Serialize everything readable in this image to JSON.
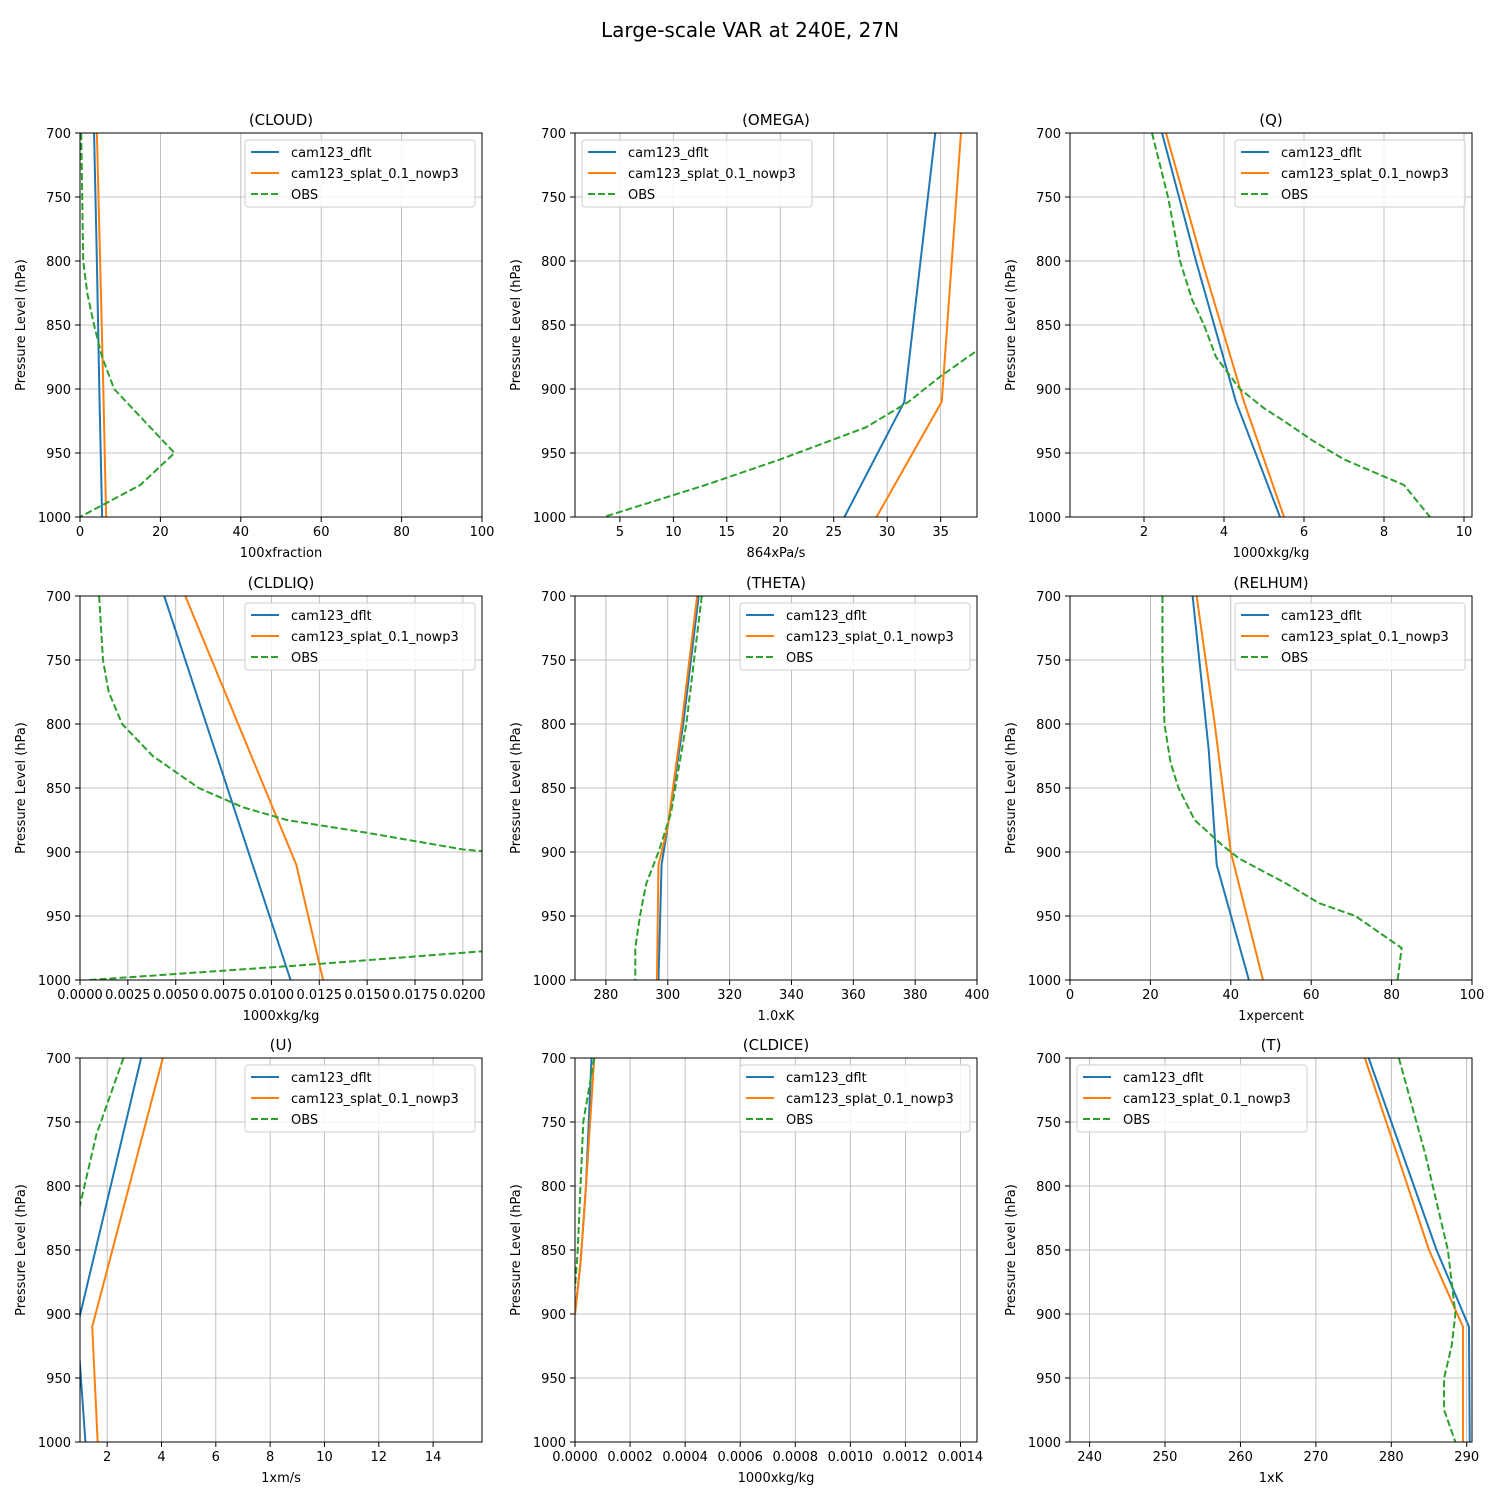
{
  "figure": {
    "title": "Large-scale VAR at 240E, 27N",
    "ylabel": "Pressure Level (hPa)",
    "ylim": [
      1000,
      700
    ],
    "yticks": [
      700,
      750,
      800,
      850,
      900,
      950,
      1000
    ],
    "legend_labels": [
      "cam123_dflt",
      "cam123_splat_0.1_nowp3",
      "OBS"
    ],
    "series_colors": {
      "cam123_dflt": "#1f77b4",
      "cam123_splat_0.1_nowp3": "#ff7f0e",
      "OBS": "#2ca02c"
    }
  },
  "chart_data": [
    {
      "type": "line",
      "title": "(CLOUD)",
      "xlabel": "100xfraction",
      "ylabel": "Pressure Level (hPa)",
      "xlim": [
        0,
        100
      ],
      "ylim": [
        1000,
        700
      ],
      "xticks": [
        0,
        20,
        40,
        60,
        80,
        100
      ],
      "xtick_labels": [
        "0",
        "20",
        "40",
        "60",
        "80",
        "100"
      ],
      "grid": true,
      "legend": "top-right",
      "series": [
        {
          "name": "cam123_dflt",
          "style": "solid",
          "points": [
            [
              3.5,
              700
            ],
            [
              4.2,
              800
            ],
            [
              4.8,
              900
            ],
            [
              5.5,
              1000
            ]
          ]
        },
        {
          "name": "cam123_splat_0.1_nowp3",
          "style": "solid",
          "points": [
            [
              4.2,
              700
            ],
            [
              5.0,
              800
            ],
            [
              5.8,
              900
            ],
            [
              6.5,
              1000
            ]
          ]
        },
        {
          "name": "OBS",
          "style": "dashed",
          "points": [
            [
              0.3,
              700
            ],
            [
              0.8,
              800
            ],
            [
              1.8,
              825
            ],
            [
              3.5,
              850
            ],
            [
              5.5,
              875
            ],
            [
              8.5,
              900
            ],
            [
              16,
              925
            ],
            [
              23.5,
              950
            ],
            [
              15,
              975
            ],
            [
              0,
              1000
            ]
          ]
        }
      ]
    },
    {
      "type": "line",
      "title": "(OMEGA)",
      "xlabel": "864xPa/s",
      "ylabel": "Pressure Level (hPa)",
      "xlim": [
        0.8,
        38.4
      ],
      "ylim": [
        1000,
        700
      ],
      "xticks": [
        5,
        10,
        15,
        20,
        25,
        30,
        35
      ],
      "xtick_labels": [
        "5",
        "10",
        "15",
        "20",
        "25",
        "30",
        "35"
      ],
      "grid": true,
      "legend": "top-left",
      "series": [
        {
          "name": "cam123_dflt",
          "style": "solid",
          "points": [
            [
              34.5,
              700
            ],
            [
              31.6,
              910
            ],
            [
              26.0,
              1000
            ]
          ]
        },
        {
          "name": "cam123_splat_0.1_nowp3",
          "style": "solid",
          "points": [
            [
              36.9,
              700
            ],
            [
              35.1,
              910
            ],
            [
              29.0,
              1000
            ]
          ]
        },
        {
          "name": "OBS",
          "style": "dashed",
          "points": [
            [
              39.5,
              860
            ],
            [
              38.4,
              870
            ],
            [
              35,
              890
            ],
            [
              32,
              910
            ],
            [
              28,
              930
            ],
            [
              20,
              955
            ],
            [
              13,
              975
            ],
            [
              3.5,
              1000
            ]
          ]
        }
      ]
    },
    {
      "type": "line",
      "title": "(Q)",
      "xlabel": "1000xkg/kg",
      "ylabel": "Pressure Level (hPa)",
      "xlim": [
        0.15,
        10.2
      ],
      "ylim": [
        1000,
        700
      ],
      "xticks": [
        2,
        4,
        6,
        8,
        10
      ],
      "xtick_labels": [
        "2",
        "4",
        "6",
        "8",
        "10"
      ],
      "grid": true,
      "legend": "top-right",
      "series": [
        {
          "name": "cam123_dflt",
          "style": "solid",
          "points": [
            [
              2.45,
              700
            ],
            [
              3.3,
              800
            ],
            [
              4.3,
              910
            ],
            [
              5.4,
              1000
            ]
          ]
        },
        {
          "name": "cam123_splat_0.1_nowp3",
          "style": "solid",
          "points": [
            [
              2.55,
              700
            ],
            [
              3.45,
              800
            ],
            [
              4.5,
              910
            ],
            [
              5.5,
              1000
            ]
          ]
        },
        {
          "name": "OBS",
          "style": "dashed",
          "points": [
            [
              2.2,
              700
            ],
            [
              2.6,
              750
            ],
            [
              2.9,
              800
            ],
            [
              3.2,
              830
            ],
            [
              3.5,
              850
            ],
            [
              3.8,
              875
            ],
            [
              4.4,
              900
            ],
            [
              5.0,
              915
            ],
            [
              5.5,
              925
            ],
            [
              6.2,
              940
            ],
            [
              7.0,
              955
            ],
            [
              8.5,
              975
            ],
            [
              9.15,
              1000
            ]
          ]
        }
      ]
    },
    {
      "type": "line",
      "title": "(CLDLIQ)",
      "xlabel": "1000xkg/kg",
      "ylabel": "Pressure Level (hPa)",
      "xlim": [
        0,
        0.021
      ],
      "ylim": [
        1000,
        700
      ],
      "xticks": [
        0,
        0.0025,
        0.005,
        0.0075,
        0.01,
        0.0125,
        0.015,
        0.0175,
        0.02
      ],
      "xtick_labels": [
        "0.0000",
        "0.0025",
        "0.0050",
        "0.0075",
        "0.0100",
        "0.0125",
        "0.0150",
        "0.0175",
        "0.0200"
      ],
      "grid": true,
      "legend": "top-right",
      "series": [
        {
          "name": "cam123_dflt",
          "style": "solid",
          "points": [
            [
              0.0044,
              700
            ],
            [
              0.011,
              1000
            ]
          ]
        },
        {
          "name": "cam123_splat_0.1_nowp3",
          "style": "solid",
          "points": [
            [
              0.0055,
              700
            ],
            [
              0.0113,
              910
            ],
            [
              0.0127,
              1000
            ]
          ]
        },
        {
          "name": "OBS",
          "style": "dashed",
          "points": [
            [
              0.001,
              700
            ],
            [
              0.0012,
              750
            ],
            [
              0.0015,
              775
            ],
            [
              0.0022,
              800
            ],
            [
              0.0038,
              825
            ],
            [
              0.0062,
              850
            ],
            [
              0.0085,
              865
            ],
            [
              0.0108,
              875
            ],
            [
              0.015,
              885
            ],
            [
              0.02,
              898
            ],
            [
              0.023,
              902
            ]
          ]
        },
        {
          "name": "OBS",
          "style": "dashed",
          "points": [
            [
              0.0005,
              1000
            ],
            [
              0.012,
              988
            ],
            [
              0.0215,
              977
            ]
          ]
        }
      ]
    },
    {
      "type": "line",
      "title": "(THETA)",
      "xlabel": "1.0xK",
      "ylabel": "Pressure Level (hPa)",
      "xlim": [
        270,
        400
      ],
      "ylim": [
        1000,
        700
      ],
      "xticks": [
        280,
        300,
        320,
        340,
        360,
        380,
        400
      ],
      "xtick_labels": [
        "280",
        "300",
        "320",
        "340",
        "360",
        "380",
        "400"
      ],
      "grid": true,
      "legend": "top-right",
      "series": [
        {
          "name": "cam123_dflt",
          "style": "solid",
          "points": [
            [
              310,
              700
            ],
            [
              305,
              800
            ],
            [
              300,
              880
            ],
            [
              298,
              910
            ],
            [
              297,
              1000
            ]
          ]
        },
        {
          "name": "cam123_splat_0.1_nowp3",
          "style": "solid",
          "points": [
            [
              309.5,
              700
            ],
            [
              304.5,
              800
            ],
            [
              300,
              880
            ],
            [
              297,
              910
            ],
            [
              296.5,
              1000
            ]
          ]
        },
        {
          "name": "OBS",
          "style": "dashed",
          "points": [
            [
              311,
              700
            ],
            [
              306,
              800
            ],
            [
              301,
              870
            ],
            [
              297,
              900
            ],
            [
              293,
              925
            ],
            [
              291,
              950
            ],
            [
              289.5,
              975
            ],
            [
              289.5,
              1000
            ]
          ]
        }
      ]
    },
    {
      "type": "line",
      "title": "(RELHUM)",
      "xlabel": "1xpercent",
      "ylabel": "Pressure Level (hPa)",
      "xlim": [
        0,
        100
      ],
      "ylim": [
        1000,
        700
      ],
      "xticks": [
        0,
        20,
        40,
        60,
        80,
        100
      ],
      "xtick_labels": [
        "0",
        "20",
        "40",
        "60",
        "80",
        "100"
      ],
      "grid": true,
      "legend": "top-right",
      "series": [
        {
          "name": "cam123_dflt",
          "style": "solid",
          "points": [
            [
              30.5,
              700
            ],
            [
              34.5,
              820
            ],
            [
              36.5,
              910
            ],
            [
              44.5,
              1000
            ]
          ]
        },
        {
          "name": "cam123_splat_0.1_nowp3",
          "style": "solid",
          "points": [
            [
              31.5,
              700
            ],
            [
              36,
              800
            ],
            [
              40,
              900
            ],
            [
              48,
              1000
            ]
          ]
        },
        {
          "name": "OBS",
          "style": "dashed",
          "points": [
            [
              23,
              700
            ],
            [
              23,
              750
            ],
            [
              23.5,
              800
            ],
            [
              25,
              830
            ],
            [
              27,
              850
            ],
            [
              31,
              875
            ],
            [
              38,
              895
            ],
            [
              42,
              905
            ],
            [
              48,
              915
            ],
            [
              54,
              925
            ],
            [
              62,
              940
            ],
            [
              71,
              950
            ],
            [
              82.5,
              975
            ],
            [
              81.5,
              1000
            ]
          ]
        }
      ]
    },
    {
      "type": "line",
      "title": "(U)",
      "xlabel": "1xm/s",
      "ylabel": "Pressure Level (hPa)",
      "xlim": [
        1.0,
        15.8
      ],
      "ylim": [
        1000,
        700
      ],
      "xticks": [
        2,
        4,
        6,
        8,
        10,
        12,
        14
      ],
      "xtick_labels": [
        "2",
        "4",
        "6",
        "8",
        "10",
        "12",
        "14"
      ],
      "grid": true,
      "legend": "top-right",
      "series": [
        {
          "name": "cam123_dflt",
          "style": "solid",
          "points": [
            [
              3.25,
              700
            ],
            [
              0.9,
              910
            ],
            [
              1.2,
              1000
            ]
          ]
        },
        {
          "name": "cam123_splat_0.1_nowp3",
          "style": "solid",
          "points": [
            [
              4.05,
              700
            ],
            [
              1.45,
              910
            ],
            [
              1.65,
              1000
            ]
          ]
        },
        {
          "name": "OBS",
          "style": "dashed",
          "points": [
            [
              2.6,
              700
            ],
            [
              1.6,
              760
            ],
            [
              1.0,
              815
            ],
            [
              0.8,
              830
            ]
          ]
        }
      ]
    },
    {
      "type": "line",
      "title": "(CLDICE)",
      "xlabel": "1000xkg/kg",
      "ylabel": "Pressure Level (hPa)",
      "xlim": [
        0,
        0.00146
      ],
      "ylim": [
        1000,
        700
      ],
      "xticks": [
        0,
        0.0002,
        0.0004,
        0.0006,
        0.0008,
        0.001,
        0.0012,
        0.0014
      ],
      "xtick_labels": [
        "0.0000",
        "0.0002",
        "0.0004",
        "0.0006",
        "0.0008",
        "0.0010",
        "0.0012",
        "0.0014"
      ],
      "grid": true,
      "legend": "top-right",
      "series": [
        {
          "name": "cam123_dflt",
          "style": "solid",
          "points": [
            [
              6e-05,
              700
            ],
            [
              4e-05,
              800
            ],
            [
              2e-05,
              860
            ],
            [
              0.0,
              900
            ]
          ]
        },
        {
          "name": "cam123_splat_0.1_nowp3",
          "style": "solid",
          "points": [
            [
              7e-05,
              700
            ],
            [
              4e-05,
              800
            ],
            [
              2e-05,
              860
            ],
            [
              0.0,
              900
            ]
          ]
        },
        {
          "name": "OBS",
          "style": "dashed",
          "points": [
            [
              7e-05,
              700
            ],
            [
              3e-05,
              750
            ],
            [
              2e-05,
              800
            ],
            [
              1e-05,
              850
            ],
            [
              0.0,
              880
            ]
          ]
        }
      ]
    },
    {
      "type": "line",
      "title": "(T)",
      "xlabel": "1xK",
      "ylabel": "Pressure Level (hPa)",
      "xlim": [
        237.4,
        290.7
      ],
      "ylim": [
        1000,
        700
      ],
      "xticks": [
        240,
        250,
        260,
        270,
        280,
        290
      ],
      "xtick_labels": [
        "240",
        "250",
        "260",
        "270",
        "280",
        "290"
      ],
      "grid": true,
      "legend": "top-left",
      "series": [
        {
          "name": "cam123_dflt",
          "style": "solid",
          "points": [
            [
              277,
              700
            ],
            [
              286,
              850
            ],
            [
              290.3,
              910
            ],
            [
              290.4,
              1000
            ]
          ]
        },
        {
          "name": "cam123_splat_0.1_nowp3",
          "style": "solid",
          "points": [
            [
              276.5,
              700
            ],
            [
              285,
              850
            ],
            [
              289.5,
              910
            ],
            [
              289.5,
              1000
            ]
          ]
        },
        {
          "name": "OBS",
          "style": "dashed",
          "points": [
            [
              281,
              700
            ],
            [
              284.5,
              775
            ],
            [
              286.5,
              825
            ],
            [
              287.5,
              850
            ],
            [
              288,
              875
            ],
            [
              288.5,
              900
            ],
            [
              288,
              925
            ],
            [
              287,
              950
            ],
            [
              287,
              975
            ],
            [
              288.5,
              1000
            ]
          ]
        }
      ]
    }
  ]
}
